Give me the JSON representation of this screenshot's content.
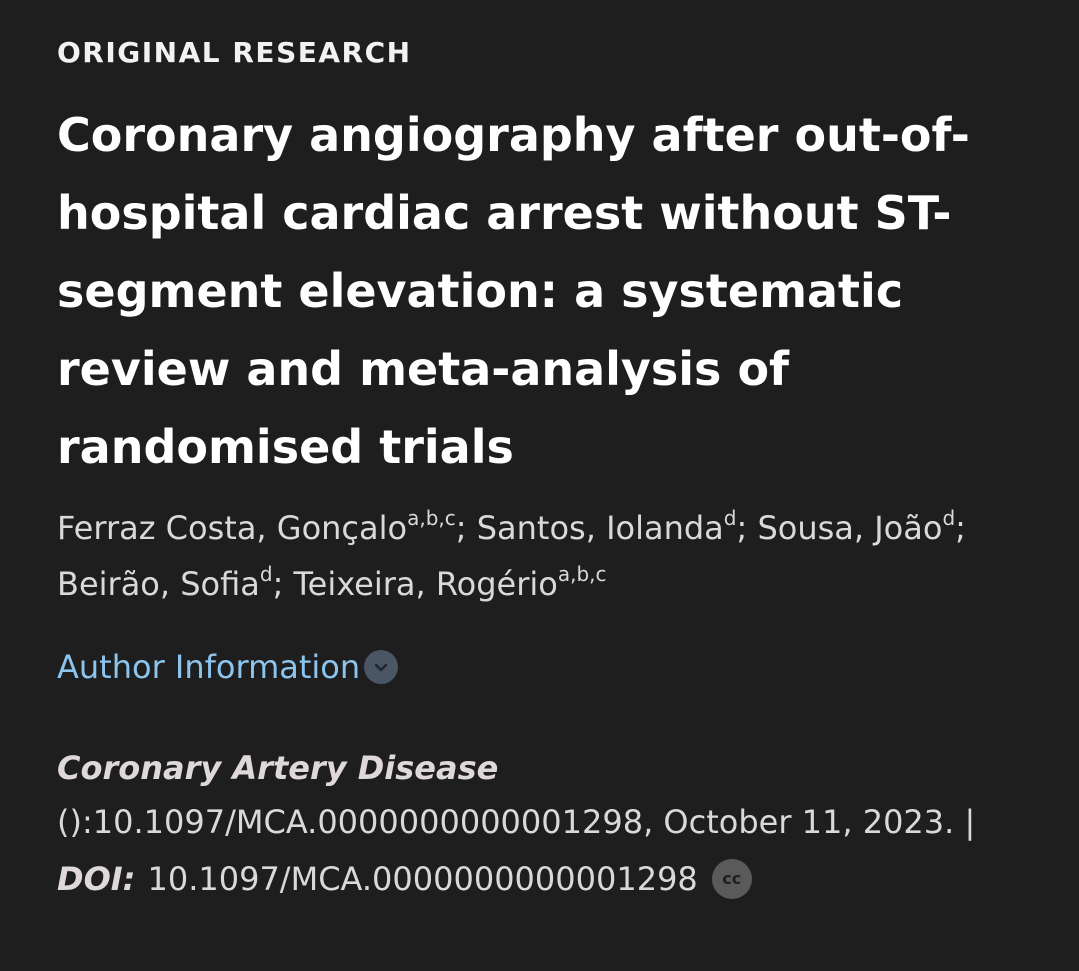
{
  "article": {
    "category": "ORIGINAL RESEARCH",
    "title": "Coronary angiography after out-of-hospital cardiac arrest without ST-segment elevation: a systematic review and meta-analysis of randomised trials",
    "authors": [
      {
        "name": "Ferraz Costa, Gonçalo",
        "affiliations": "a,b,c",
        "sep": "; "
      },
      {
        "name": "Santos, Iolanda",
        "affiliations": "d",
        "sep": "; "
      },
      {
        "name": "Sousa, João",
        "affiliations": "d",
        "sep": "; "
      },
      {
        "name": "Beirão, Sofia",
        "affiliations": "d",
        "sep": "; "
      },
      {
        "name": "Teixeira, Rogério",
        "affiliations": "a,b,c",
        "sep": ""
      }
    ],
    "author_info_label": "Author Information",
    "journal": "Coronary Artery Disease",
    "citation": "():10.1097/MCA.0000000000001298, October 11, 2023. |",
    "doi_label": "DOI:",
    "doi_value": "10.1097/MCA.0000000000001298",
    "license_badge": "cc"
  },
  "colors": {
    "background": "#1e1e1e",
    "link": "#8dc4ee",
    "text": "#d9d9d9"
  }
}
